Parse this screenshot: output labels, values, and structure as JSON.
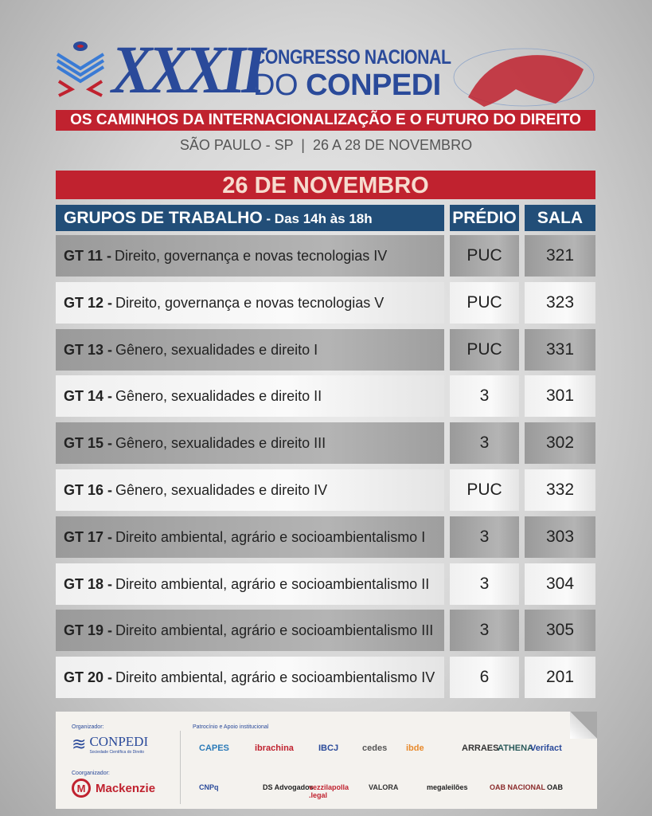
{
  "header": {
    "edition": "XXXII",
    "title_line1": "CONGRESSO NACIONAL",
    "title_line2_a": "DO",
    "title_line2_b": "CONPEDI",
    "tagline": "OS CAMINHOS DA INTERNACIONALIZAÇÃO E O FUTURO DO DIREITO",
    "location_dates": "SÃO PAULO - SP  |  26 A 28 DE NOVEMBRO"
  },
  "day": "26 DE NOVEMBRO",
  "table": {
    "col_group": "GRUPOS DE TRABALHO",
    "col_group_time": " - Das 14h às 18h",
    "col_building": "PRÉDIO",
    "col_room": "SALA",
    "rows": [
      {
        "gt": "GT 11 -",
        "name": "Direito, governança e novas tecnologias IV",
        "building": "PUC",
        "room": "321"
      },
      {
        "gt": "GT 12 -",
        "name": "Direito, governança e novas tecnologias V",
        "building": "PUC",
        "room": "323"
      },
      {
        "gt": "GT 13 -",
        "name": "Gênero, sexualidades e direito I",
        "building": "PUC",
        "room": "331"
      },
      {
        "gt": "GT 14 -",
        "name": "Gênero, sexualidades e direito II",
        "building": "3",
        "room": "301"
      },
      {
        "gt": "GT 15 -",
        "name": "Gênero, sexualidades e direito III",
        "building": "3",
        "room": "302"
      },
      {
        "gt": "GT 16 -",
        "name": "Gênero, sexualidades e direito IV",
        "building": "PUC",
        "room": "332"
      },
      {
        "gt": "GT 17 -",
        "name": "Direito ambiental, agrário e socioambientalismo I",
        "building": "3",
        "room": "303"
      },
      {
        "gt": "GT 18 -",
        "name": "Direito ambiental, agrário e socioambientalismo II",
        "building": "3",
        "room": "304"
      },
      {
        "gt": "GT 19 -",
        "name": "Direito ambiental, agrário e socioambientalismo III",
        "building": "3",
        "room": "305"
      },
      {
        "gt": "GT 20 -",
        "name": "Direito ambiental, agrário e socioambientalismo IV",
        "building": "6",
        "room": "201"
      }
    ]
  },
  "footer": {
    "organizer_label": "Organizador:",
    "organizer": "CONPEDI",
    "organizer_sub": "Sociedade Científica do Direito",
    "coorganizer_label": "Coorganizador:",
    "coorganizer": "Mackenzie",
    "sponsors_label": "Patrocínio e Apoio institucional",
    "sponsors_row1": [
      "CAPES",
      "ibrachina",
      "IBCJ",
      "cedes",
      "ibde",
      "ARRAES",
      "ATHENA",
      "Verifact"
    ],
    "sponsors_row2": [
      "CNPq",
      "DS Advogados",
      "vezzilapolla .legal",
      "VALORA",
      "megaleilões",
      "OAB NACIONAL",
      "OAB"
    ]
  },
  "colors": {
    "red": "#c0222f",
    "navy": "#224e78",
    "blue": "#2a4a9a"
  }
}
